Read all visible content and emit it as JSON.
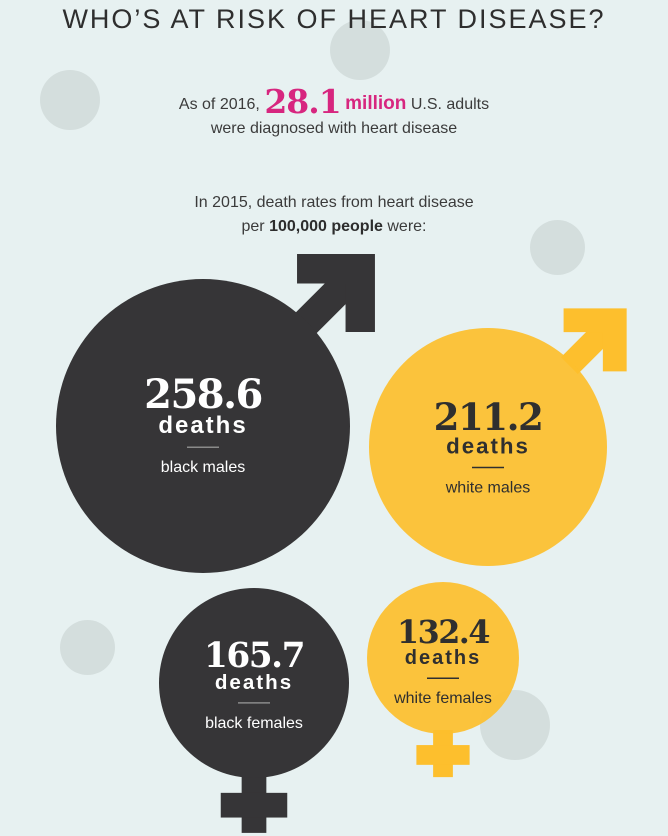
{
  "title": "WHO’S AT RISK OF HEART DISEASE?",
  "intro": {
    "prefix": "As of 2016,",
    "value": "28.1",
    "unit": "million",
    "suffix": "U.S. adults",
    "line2": "were diagnosed with heart disease"
  },
  "rates_intro": {
    "line1": "In 2015, death rates from heart disease",
    "line2_prefix": "per",
    "line2_bold": "100,000 people",
    "line2_suffix": "were:"
  },
  "colors": {
    "dark": "#363537",
    "yellow": "#fdbf2d",
    "accent": "#d7267f",
    "background": "#e7f1f1"
  },
  "chart_data": {
    "type": "bubble",
    "unit_label": "deaths",
    "units": "deaths per 100,000 people",
    "groups": [
      {
        "value": 258.6,
        "value_label": "258.6",
        "label": "black males",
        "symbol": "male-symbol",
        "color": "#363537"
      },
      {
        "value": 211.2,
        "value_label": "211.2",
        "label": "white males",
        "symbol": "male-symbol",
        "color": "#fdbf2d"
      },
      {
        "value": 165.7,
        "value_label": "165.7",
        "label": "black females",
        "symbol": "female-symbol",
        "color": "#363537"
      },
      {
        "value": 132.4,
        "value_label": "132.4",
        "label": "white females",
        "symbol": "female-symbol",
        "color": "#fdbf2d"
      }
    ]
  }
}
